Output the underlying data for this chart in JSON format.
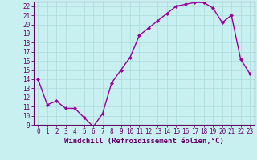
{
  "x": [
    0,
    1,
    2,
    3,
    4,
    5,
    6,
    7,
    8,
    9,
    10,
    11,
    12,
    13,
    14,
    15,
    16,
    17,
    18,
    19,
    20,
    21,
    22,
    23
  ],
  "y": [
    14,
    11.2,
    11.6,
    10.8,
    10.8,
    9.8,
    8.8,
    10.2,
    13.6,
    15.0,
    16.4,
    18.8,
    19.6,
    20.4,
    21.2,
    22.0,
    22.2,
    22.4,
    22.4,
    21.8,
    20.2,
    21.0,
    16.2,
    14.6
  ],
  "line_color": "#990099",
  "marker": "D",
  "marker_size": 2.0,
  "line_width": 1.0,
  "bg_color": "#c8f0f0",
  "grid_color": "#b0dede",
  "xlabel": "Windchill (Refroidissement éolien,°C)",
  "xlabel_fontsize": 6.5,
  "tick_fontsize": 5.5,
  "ylim": [
    9,
    22.5
  ],
  "yticks": [
    9,
    10,
    11,
    12,
    13,
    14,
    15,
    16,
    17,
    18,
    19,
    20,
    21,
    22
  ],
  "xlim": [
    -0.5,
    23.5
  ],
  "xticks": [
    0,
    1,
    2,
    3,
    4,
    5,
    6,
    7,
    8,
    9,
    10,
    11,
    12,
    13,
    14,
    15,
    16,
    17,
    18,
    19,
    20,
    21,
    22,
    23
  ],
  "spine_color": "#660066",
  "xlabel_color": "#660066",
  "tick_color": "#660066"
}
